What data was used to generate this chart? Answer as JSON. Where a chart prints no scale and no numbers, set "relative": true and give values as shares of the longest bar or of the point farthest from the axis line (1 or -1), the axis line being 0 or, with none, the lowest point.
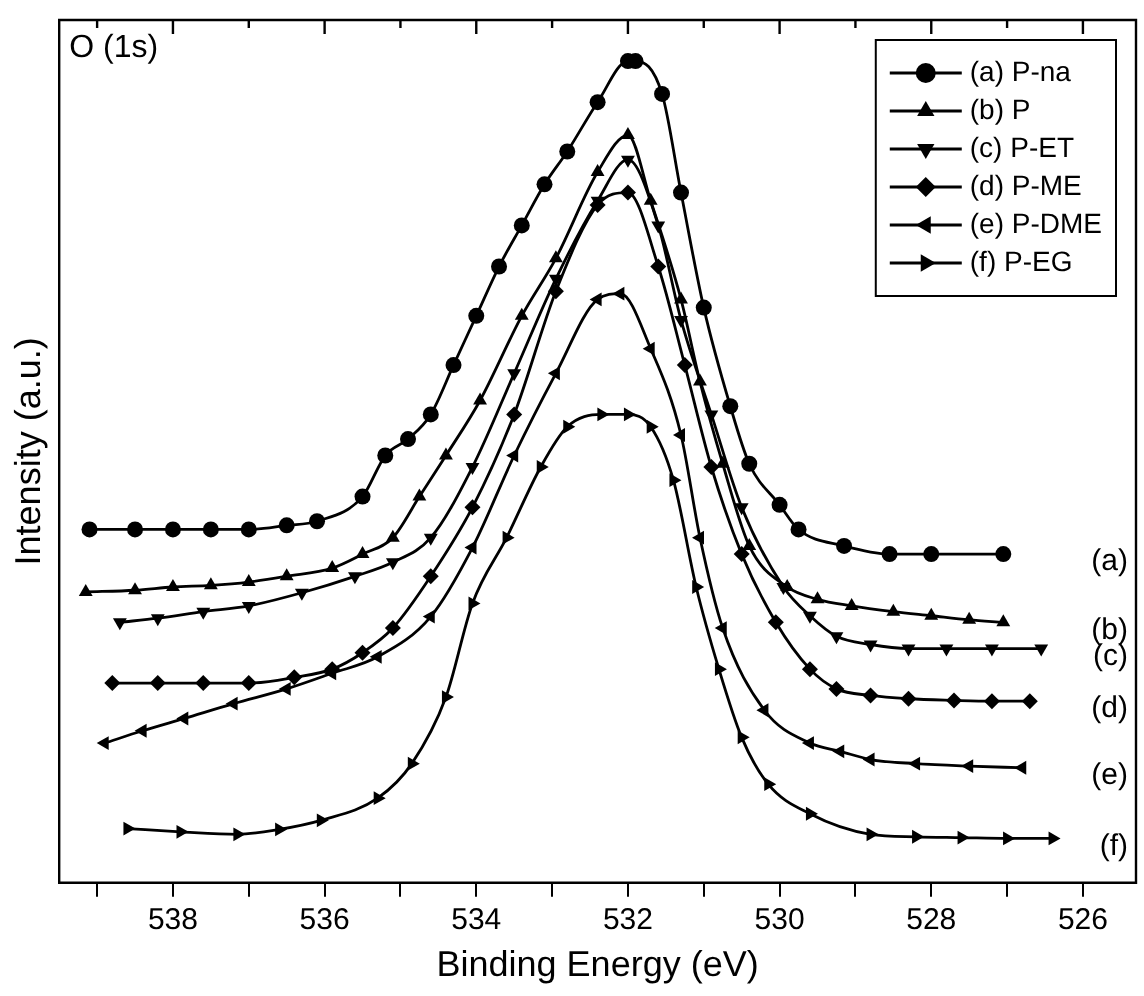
{
  "chart_data": {
    "type": "line",
    "relative": true,
    "xlabel": "Binding Energy (eV)",
    "ylabel": "Intensity (a.u.)",
    "xlim": [
      539.5,
      525.3
    ],
    "xticks": [
      {
        "value": 539,
        "label": null
      },
      538,
      {
        "value": 537,
        "label": null
      },
      536,
      {
        "value": 535,
        "label": null
      },
      534,
      {
        "value": 533,
        "label": null
      },
      532,
      {
        "value": 531,
        "label": null
      },
      530,
      {
        "value": 529,
        "label": null
      },
      528,
      {
        "value": 527,
        "label": null
      },
      526
    ],
    "grid": false,
    "legend": "top right",
    "line_style": "solid",
    "tick_labels": "x",
    "annotations": [
      "O (1s)",
      "(a)",
      "(b)",
      "(c)",
      "(d)",
      "(e)",
      "(f)"
    ],
    "series": [
      {
        "name": "(a) P-na",
        "color": "#000000",
        "marker": "circle",
        "x": [
          539.1,
          538.5,
          538,
          537.5,
          537,
          536.5,
          536.1,
          535.5,
          535.2,
          534.9,
          534.6,
          534.3,
          534,
          533.7,
          533.4,
          533.1,
          532.8,
          532.4,
          532,
          531.9,
          531.55,
          531.3,
          531,
          530.65,
          530.4,
          530,
          529.75,
          529.15,
          528.55,
          528,
          527.05
        ],
        "values": [
          0.43,
          0.43,
          0.43,
          0.43,
          0.43,
          0.435,
          0.44,
          0.47,
          0.52,
          0.54,
          0.57,
          0.63,
          0.69,
          0.75,
          0.8,
          0.85,
          0.89,
          0.95,
          1,
          1,
          0.96,
          0.84,
          0.7,
          0.58,
          0.51,
          0.46,
          0.43,
          0.41,
          0.4,
          0.4,
          0.4
        ]
      },
      {
        "name": "(b) P",
        "color": "#000000",
        "marker": "triangle",
        "x": [
          539.15,
          538.5,
          538,
          537.5,
          537,
          536.5,
          535.9,
          535.5,
          535.1,
          534.75,
          534.4,
          533.95,
          533.4,
          532.95,
          532.4,
          532,
          531.7,
          531.3,
          531.05,
          530.75,
          530.4,
          529.9,
          529.5,
          529.05,
          528.5,
          528,
          527.5,
          527.05
        ],
        "values": [
          0.354,
          0.356,
          0.36,
          0.362,
          0.366,
          0.373,
          0.383,
          0.4,
          0.42,
          0.47,
          0.52,
          0.587,
          0.69,
          0.76,
          0.865,
          0.91,
          0.83,
          0.71,
          0.61,
          0.51,
          0.41,
          0.36,
          0.345,
          0.337,
          0.33,
          0.325,
          0.32,
          0.317
        ]
      },
      {
        "name": "(c) P-ET",
        "color": "#000000",
        "marker": "triangle-down",
        "x": [
          538.7,
          538.2,
          537.6,
          537,
          536.3,
          535.6,
          535.1,
          534.6,
          534.05,
          533.5,
          532.95,
          532.4,
          532,
          531.6,
          531.3,
          530.9,
          530.5,
          529.95,
          529.6,
          529.25,
          528.8,
          528.3,
          527.8,
          527.2,
          526.55
        ],
        "values": [
          0.317,
          0.322,
          0.33,
          0.337,
          0.353,
          0.373,
          0.39,
          0.42,
          0.506,
          0.62,
          0.735,
          0.83,
          0.88,
          0.8,
          0.685,
          0.57,
          0.457,
          0.36,
          0.325,
          0.3,
          0.29,
          0.285,
          0.285,
          0.285,
          0.285
        ]
      },
      {
        "name": "(d) P-ME",
        "color": "#000000",
        "marker": "diamond",
        "x": [
          538.8,
          538.2,
          537.6,
          537,
          536.4,
          535.9,
          535.5,
          535.1,
          534.6,
          534.05,
          533.5,
          532.95,
          532.4,
          532,
          531.6,
          531.25,
          530.9,
          530.5,
          530.05,
          529.6,
          529.25,
          528.8,
          528.3,
          527.7,
          527.2,
          526.7
        ],
        "values": [
          0.243,
          0.243,
          0.243,
          0.243,
          0.25,
          0.26,
          0.28,
          0.31,
          0.373,
          0.457,
          0.57,
          0.72,
          0.825,
          0.84,
          0.75,
          0.63,
          0.506,
          0.4,
          0.317,
          0.26,
          0.236,
          0.228,
          0.224,
          0.222,
          0.221,
          0.221
        ]
      },
      {
        "name": "(e) P-DME",
        "color": "#000000",
        "marker": "triangle-left",
        "x": [
          538.9,
          538.4,
          537.85,
          537.2,
          536.5,
          535.9,
          535.3,
          534.6,
          534.05,
          533.5,
          532.95,
          532.4,
          532.1,
          531.7,
          531.3,
          531.05,
          530.75,
          530.2,
          529.6,
          529.2,
          528.8,
          528.2,
          527.5,
          526.8
        ],
        "values": [
          0.17,
          0.185,
          0.2,
          0.218,
          0.236,
          0.255,
          0.275,
          0.324,
          0.408,
          0.52,
          0.62,
          0.71,
          0.717,
          0.65,
          0.545,
          0.42,
          0.31,
          0.21,
          0.17,
          0.16,
          0.15,
          0.145,
          0.142,
          0.14
        ]
      },
      {
        "name": "(f) P-EG",
        "color": "#000000",
        "marker": "triangle-right",
        "x": [
          538.6,
          537.9,
          537.15,
          536.6,
          536.05,
          535.3,
          534.85,
          534.4,
          534.05,
          533.6,
          533.15,
          532.8,
          532.35,
          532,
          531.7,
          531.4,
          531.1,
          530.8,
          530.5,
          530.15,
          529.6,
          528.8,
          528.2,
          527.6,
          527,
          526.4
        ],
        "values": [
          0.066,
          0.062,
          0.059,
          0.065,
          0.076,
          0.103,
          0.145,
          0.226,
          0.34,
          0.42,
          0.506,
          0.555,
          0.57,
          0.57,
          0.555,
          0.49,
          0.36,
          0.26,
          0.177,
          0.12,
          0.084,
          0.059,
          0.056,
          0.055,
          0.054,
          0.054
        ]
      }
    ]
  }
}
